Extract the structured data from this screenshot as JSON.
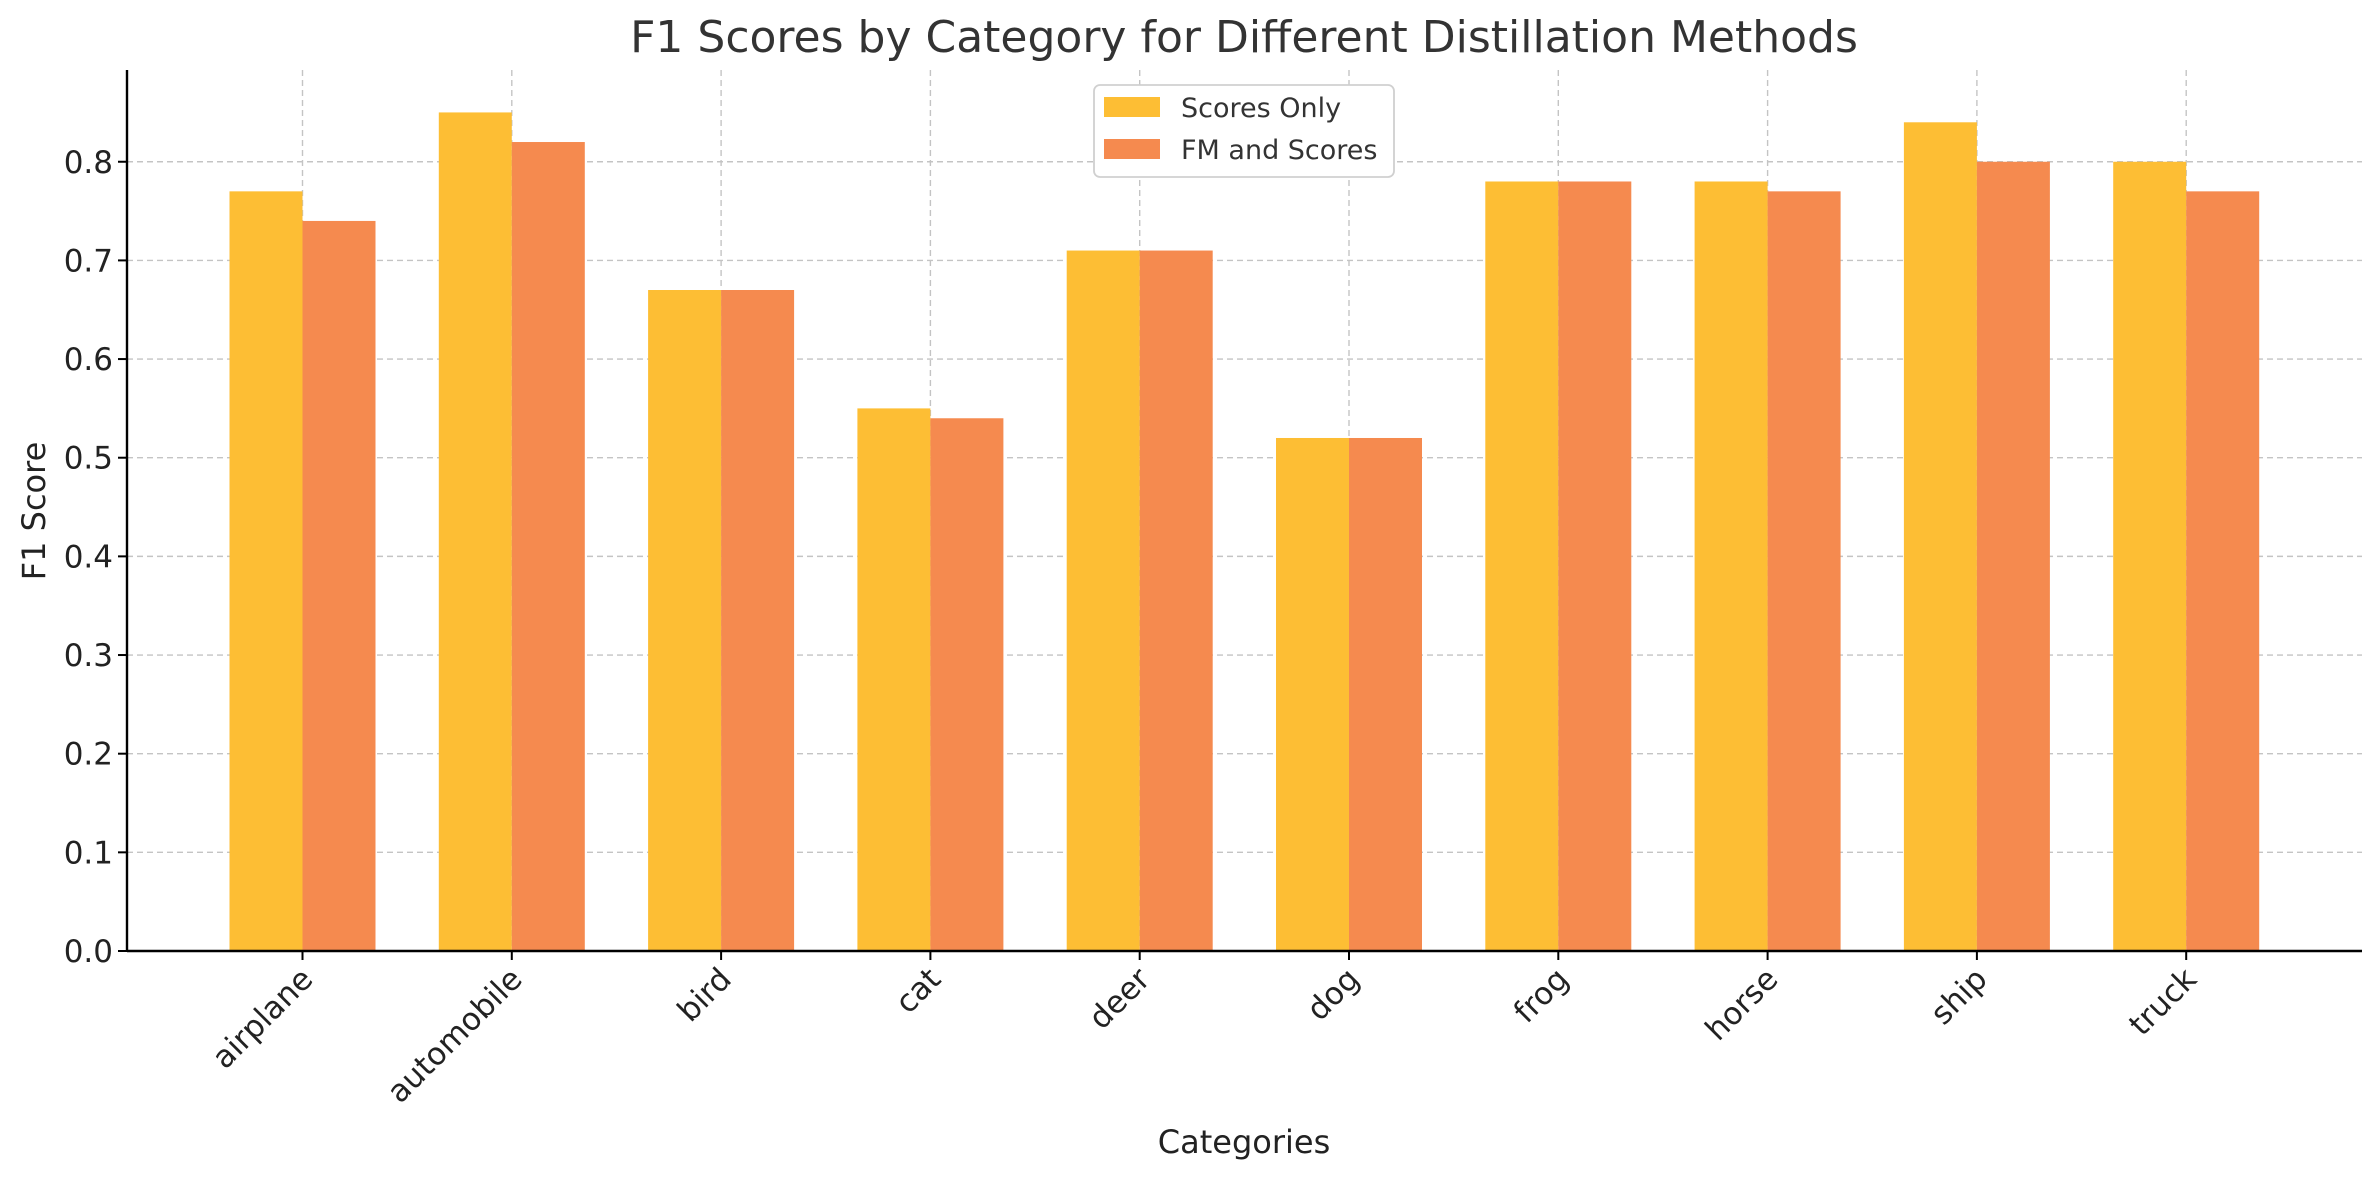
{
  "chart_data": {
    "type": "bar",
    "title": "F1 Scores by Category for Different Distillation Methods",
    "xlabel": "Categories",
    "ylabel": "F1 Score",
    "ylim": [
      0,
      0.893
    ],
    "yticks": [
      "0.0",
      "0.1",
      "0.2",
      "0.3",
      "0.4",
      "0.5",
      "0.6",
      "0.7",
      "0.8"
    ],
    "categories": [
      "airplane",
      "automobile",
      "bird",
      "cat",
      "deer",
      "dog",
      "frog",
      "horse",
      "ship",
      "truck"
    ],
    "series": [
      {
        "name": "Scores Only",
        "color": "#FDBE34",
        "values": [
          0.77,
          0.85,
          0.67,
          0.55,
          0.71,
          0.52,
          0.78,
          0.78,
          0.84,
          0.8
        ]
      },
      {
        "name": "FM and Scores",
        "color": "#F58A4F",
        "values": [
          0.74,
          0.82,
          0.67,
          0.54,
          0.71,
          0.52,
          0.78,
          0.77,
          0.8,
          0.77
        ]
      }
    ],
    "grid": true,
    "legend": "top-center",
    "x_tick_rotation_deg": 45
  }
}
